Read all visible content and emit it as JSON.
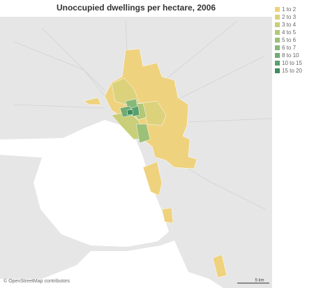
{
  "map": {
    "title": "Unoccupied dwellings per hectare, 2006",
    "legend": {
      "items": [
        {
          "label": "1 to 2",
          "color": "#efd27e"
        },
        {
          "label": "2 to 3",
          "color": "#dcd27c"
        },
        {
          "label": "3 to 4",
          "color": "#c8cf78"
        },
        {
          "label": "4 to 5",
          "color": "#b2c877"
        },
        {
          "label": "5 to 6",
          "color": "#9cc078"
        },
        {
          "label": "6 to 7",
          "color": "#86b878"
        },
        {
          "label": "8 to 10",
          "color": "#6eac74"
        },
        {
          "label": "10 to 15",
          "color": "#58a06c"
        },
        {
          "label": "15 to 20",
          "color": "#3f8c5e"
        }
      ]
    },
    "attribution": "© OpenStreetMap contributors",
    "scale_label": "5 km"
  }
}
